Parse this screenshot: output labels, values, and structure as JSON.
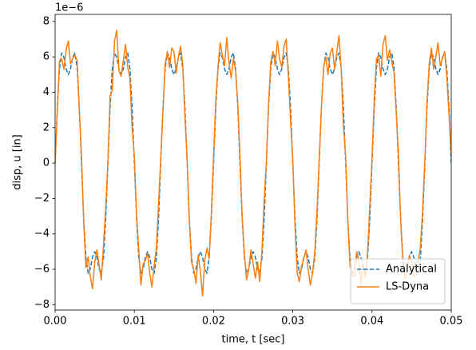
{
  "chart_data": {
    "type": "line",
    "y_offset_label": "1e−6",
    "x_label": "time, t [sec]",
    "y_label": "disp, u [in]",
    "x": [
      0,
      0.00028,
      0.00056,
      0.00083,
      0.00111,
      0.00139,
      0.00167,
      0.00194,
      0.00222,
      0.0025,
      0.00278,
      0.00306,
      0.00333,
      0.00361,
      0.00389,
      0.00417,
      0.00444,
      0.00472,
      0.005,
      0.00528,
      0.00556,
      0.00583,
      0.00611,
      0.00639,
      0.00667,
      0.00694,
      0.00722,
      0.0075,
      0.00778,
      0.00806,
      0.00833,
      0.00861,
      0.00889,
      0.00917,
      0.00944,
      0.00972,
      0.01,
      0.01028,
      0.01056,
      0.01083,
      0.01111,
      0.01139,
      0.01167,
      0.01194,
      0.01222,
      0.0125,
      0.01278,
      0.01306,
      0.01333,
      0.01361,
      0.01389,
      0.01417,
      0.01444,
      0.01472,
      0.015,
      0.01528,
      0.01556,
      0.01583,
      0.01611,
      0.01639,
      0.01667,
      0.01694,
      0.01722,
      0.0175,
      0.01778,
      0.01806,
      0.01833,
      0.01861,
      0.01889,
      0.01917,
      0.01944,
      0.01972,
      0.02,
      0.02028,
      0.02056,
      0.02083,
      0.02111,
      0.02139,
      0.02167,
      0.02194,
      0.02222,
      0.0225,
      0.02278,
      0.02306,
      0.02333,
      0.02361,
      0.02389,
      0.02417,
      0.02444,
      0.02472,
      0.025,
      0.02528,
      0.02556,
      0.02583,
      0.02611,
      0.02639,
      0.02667,
      0.02694,
      0.02722,
      0.0275,
      0.02778,
      0.02806,
      0.02833,
      0.02861,
      0.02889,
      0.02917,
      0.02944,
      0.02972,
      0.03,
      0.03028,
      0.03056,
      0.03083,
      0.03111,
      0.03139,
      0.03167,
      0.03194,
      0.03222,
      0.0325,
      0.03278,
      0.03306,
      0.03333,
      0.03361,
      0.03389,
      0.03417,
      0.03444,
      0.03472,
      0.035,
      0.03528,
      0.03556,
      0.03583,
      0.03611,
      0.03639,
      0.03667,
      0.03694,
      0.03722,
      0.0375,
      0.03778,
      0.03806,
      0.03833,
      0.03861,
      0.03889,
      0.03917,
      0.03944,
      0.03972,
      0.04,
      0.04028,
      0.04056,
      0.04083,
      0.04111,
      0.04139,
      0.04167,
      0.04194,
      0.04222,
      0.0425,
      0.04278,
      0.04306,
      0.04333,
      0.04361,
      0.04389,
      0.04417,
      0.04444,
      0.04472,
      0.045,
      0.04528,
      0.04556,
      0.04583,
      0.04611,
      0.04639,
      0.04667,
      0.04694,
      0.04722,
      0.0475,
      0.04778,
      0.04806,
      0.04833,
      0.04861,
      0.04889,
      0.04917,
      0.04944,
      0.04972,
      0.05
    ],
    "series": [
      {
        "name": "Analytical",
        "color": "#1f77b4",
        "dashed": true,
        "values": [
          0,
          3.13,
          5.35,
          6.22,
          5.98,
          5.32,
          5.0,
          5.32,
          5.98,
          6.22,
          5.35,
          3.13,
          0,
          -3.13,
          -5.35,
          -6.22,
          -5.98,
          -5.32,
          -5.0,
          -5.32,
          -5.98,
          -6.22,
          -5.35,
          -3.13,
          0,
          3.13,
          5.35,
          6.22,
          5.98,
          5.32,
          5.0,
          5.32,
          5.98,
          6.22,
          5.35,
          3.13,
          0,
          -3.13,
          -5.35,
          -6.22,
          -5.98,
          -5.32,
          -5.0,
          -5.32,
          -5.98,
          -6.22,
          -5.35,
          -3.13,
          0,
          3.13,
          5.35,
          6.22,
          5.98,
          5.32,
          5.0,
          5.32,
          5.98,
          6.22,
          5.35,
          3.13,
          0,
          -3.13,
          -5.35,
          -6.22,
          -5.98,
          -5.32,
          -5.0,
          -5.32,
          -5.98,
          -6.22,
          -5.35,
          -3.13,
          0,
          3.13,
          5.35,
          6.22,
          5.98,
          5.32,
          5.0,
          5.32,
          5.98,
          6.22,
          5.35,
          3.13,
          0,
          -3.13,
          -5.35,
          -6.22,
          -5.98,
          -5.32,
          -5.0,
          -5.32,
          -5.98,
          -6.22,
          -5.35,
          -3.13,
          0,
          3.13,
          5.35,
          6.22,
          5.98,
          5.32,
          5.0,
          5.32,
          5.98,
          6.22,
          5.35,
          3.13,
          0,
          -3.13,
          -5.35,
          -6.22,
          -5.98,
          -5.32,
          -5.0,
          -5.32,
          -5.98,
          -6.22,
          -5.35,
          -3.13,
          0,
          3.13,
          5.35,
          6.22,
          5.98,
          5.32,
          5.0,
          5.32,
          5.98,
          6.22,
          5.35,
          3.13,
          0,
          -3.13,
          -5.35,
          -6.22,
          -5.98,
          -5.32,
          -5.0,
          -5.32,
          -5.98,
          -6.22,
          -5.35,
          -3.13,
          0,
          3.13,
          5.35,
          6.22,
          5.98,
          5.32,
          5.0,
          5.32,
          5.98,
          6.22,
          5.35,
          3.13,
          0,
          -3.13,
          -5.35,
          -6.22,
          -5.98,
          -5.32,
          -5.0,
          -5.32,
          -5.98,
          -6.22,
          -5.35,
          -3.13,
          0,
          3.13,
          5.35,
          6.22,
          5.98,
          5.32,
          5.0,
          5.32,
          5.98,
          6.22,
          5.35,
          3.13,
          0
        ]
      },
      {
        "name": "LS-Dyna",
        "color": "#ff7f0e",
        "dashed": false,
        "values": [
          0,
          3.0,
          5.8,
          5.9,
          5.3,
          6.4,
          6.9,
          5.6,
          5.9,
          6.1,
          5.8,
          2.9,
          0.5,
          -3.4,
          -5.9,
          -5.3,
          -6.4,
          -7.1,
          -5.6,
          -4.9,
          -5.8,
          -6.6,
          -4.6,
          -2.5,
          0.2,
          3.8,
          4.1,
          6.9,
          7.5,
          5.2,
          4.9,
          5.8,
          6.7,
          5.4,
          4.8,
          2.0,
          0.4,
          -2.9,
          -4.9,
          -6.9,
          -5.7,
          -5.5,
          -5.1,
          -6.2,
          -7.0,
          -5.8,
          -4.8,
          -2.3,
          0.3,
          2.9,
          5.6,
          6.3,
          5.4,
          6.5,
          6.3,
          5.1,
          6.0,
          6.6,
          5.6,
          2.6,
          0.1,
          -3.3,
          -5.6,
          -6.0,
          -6.8,
          -5.2,
          -6.1,
          -7.5,
          -5.5,
          -4.8,
          -5.4,
          -2.8,
          0.4,
          3.5,
          5.4,
          6.8,
          6.1,
          5.5,
          7.1,
          5.7,
          4.8,
          5.9,
          5.2,
          3.4,
          0.5,
          -3.0,
          -5.1,
          -6.6,
          -6.0,
          -4.9,
          -5.7,
          -6.5,
          -5.6,
          -6.7,
          -4.9,
          -2.1,
          0.1,
          3.3,
          5.7,
          6.3,
          5.5,
          6.9,
          5.9,
          5.4,
          6.6,
          7.0,
          4.9,
          2.4,
          0.2,
          -3.6,
          -6.2,
          -6.7,
          -5.8,
          -5.4,
          -4.9,
          -6.0,
          -6.9,
          -6.2,
          -5.0,
          -2.7,
          0.2,
          3.1,
          5.4,
          6.0,
          5.0,
          6.2,
          6.5,
          5.3,
          6.3,
          7.2,
          5.3,
          2.1,
          0.4,
          -3.1,
          -5.8,
          -6.3,
          -6.4,
          -5.0,
          -5.5,
          -6.8,
          -5.7,
          -6.5,
          -5.1,
          -2.4,
          0.3,
          3.6,
          5.9,
          6.1,
          4.9,
          6.7,
          7.2,
          5.8,
          6.4,
          5.7,
          5.1,
          2.8,
          0.6,
          -3.2,
          -5.5,
          -6.6,
          -5.9,
          -5.2,
          -5.6,
          -6.4,
          -6.3,
          -5.6,
          -4.7,
          -2.6,
          0.2,
          3.4,
          5.6,
          6.5,
          5.3,
          6.0,
          6.8,
          5.5,
          5.9,
          6.3,
          4.9,
          2.7,
          0.5
        ]
      }
    ],
    "xlim": [
      0,
      0.05
    ],
    "xticks": [
      {
        "value": 0,
        "label": "0.00"
      },
      {
        "value": 0.01,
        "label": "0.01"
      },
      {
        "value": 0.02,
        "label": "0.02"
      },
      {
        "value": 0.03,
        "label": "0.03"
      },
      {
        "value": 0.04,
        "label": "0.04"
      },
      {
        "value": 0.05,
        "label": "0.05"
      }
    ],
    "ylim": [
      -8.3,
      8.4
    ],
    "yticks": [
      {
        "value": -8,
        "label": "−8"
      },
      {
        "value": -6,
        "label": "−6"
      },
      {
        "value": -4,
        "label": "−4"
      },
      {
        "value": -2,
        "label": "−2"
      },
      0,
      2,
      4,
      6,
      8
    ],
    "grid": false,
    "legend": "lower right"
  }
}
